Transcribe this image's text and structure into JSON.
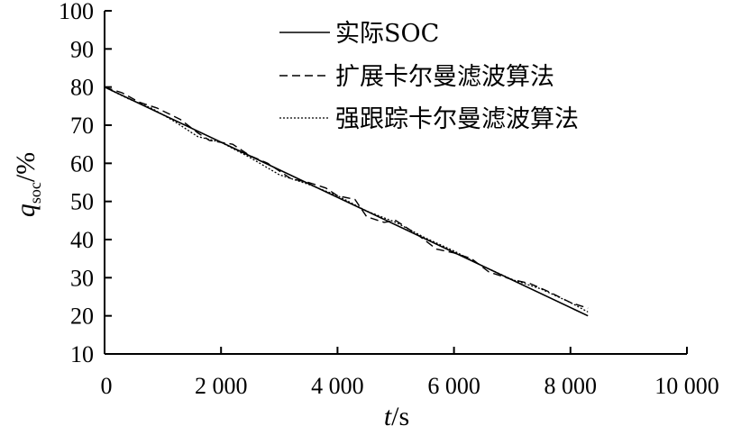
{
  "chart_data": {
    "type": "line",
    "title": "",
    "xlabel": {
      "symbol": "t",
      "unit": "/s"
    },
    "ylabel": {
      "symbol": "q",
      "subscript": "soc",
      "unit": "/%"
    },
    "xlim": [
      0,
      10000
    ],
    "ylim": [
      10,
      100
    ],
    "xticks": [
      {
        "value": 0,
        "label": "0"
      },
      {
        "value": 2000,
        "label": "2 000"
      },
      {
        "value": 4000,
        "label": "4 000"
      },
      {
        "value": 6000,
        "label": "6 000"
      },
      {
        "value": 8000,
        "label": "8 000"
      },
      {
        "value": 10000,
        "label": "10 000"
      }
    ],
    "yticks": [
      {
        "value": 10,
        "label": "10"
      },
      {
        "value": 20,
        "label": "20"
      },
      {
        "value": 30,
        "label": "30"
      },
      {
        "value": 40,
        "label": "40"
      },
      {
        "value": 50,
        "label": "50"
      },
      {
        "value": 60,
        "label": "60"
      },
      {
        "value": 70,
        "label": "70"
      },
      {
        "value": 80,
        "label": "80"
      },
      {
        "value": 90,
        "label": "90"
      },
      {
        "value": 100,
        "label": "100"
      }
    ],
    "grid": false,
    "legend_position": "top-right",
    "series": [
      {
        "name": "实际SOC",
        "style": "solid",
        "points": [
          [
            0,
            80
          ],
          [
            8300,
            20
          ]
        ]
      },
      {
        "name": "扩展卡尔曼滤波算法",
        "style": "dashed",
        "points": [
          [
            0,
            80
          ],
          [
            300,
            78.5
          ],
          [
            600,
            76
          ],
          [
            900,
            74.5
          ],
          [
            1300,
            71.5
          ],
          [
            1600,
            68
          ],
          [
            1800,
            66
          ],
          [
            2200,
            65
          ],
          [
            2500,
            62
          ],
          [
            2800,
            60
          ],
          [
            3000,
            58
          ],
          [
            3200,
            56
          ],
          [
            3500,
            55
          ],
          [
            3800,
            53.5
          ],
          [
            4000,
            51.5
          ],
          [
            4300,
            50.5
          ],
          [
            4500,
            46
          ],
          [
            4800,
            44.5
          ],
          [
            5000,
            45
          ],
          [
            5200,
            43
          ],
          [
            5400,
            41
          ],
          [
            5700,
            37.5
          ],
          [
            6000,
            36.5
          ],
          [
            6300,
            35
          ],
          [
            6600,
            31.5
          ],
          [
            7000,
            29.5
          ],
          [
            7300,
            28.5
          ],
          [
            7600,
            26.5
          ],
          [
            8000,
            23.5
          ],
          [
            8300,
            22
          ]
        ]
      },
      {
        "name": "强跟踪卡尔曼滤波算法",
        "style": "dotted",
        "points": [
          [
            0,
            80
          ],
          [
            400,
            77
          ],
          [
            800,
            74.5
          ],
          [
            1200,
            71
          ],
          [
            1600,
            67
          ],
          [
            2000,
            65.5
          ],
          [
            2500,
            61.5
          ],
          [
            3000,
            57
          ],
          [
            3500,
            54.5
          ],
          [
            4000,
            51.5
          ],
          [
            4500,
            47.5
          ],
          [
            5000,
            44.5
          ],
          [
            5500,
            40.5
          ],
          [
            6000,
            37
          ],
          [
            6500,
            33
          ],
          [
            7000,
            29.5
          ],
          [
            7500,
            27
          ],
          [
            8000,
            23.5
          ],
          [
            8300,
            21
          ]
        ]
      }
    ]
  }
}
